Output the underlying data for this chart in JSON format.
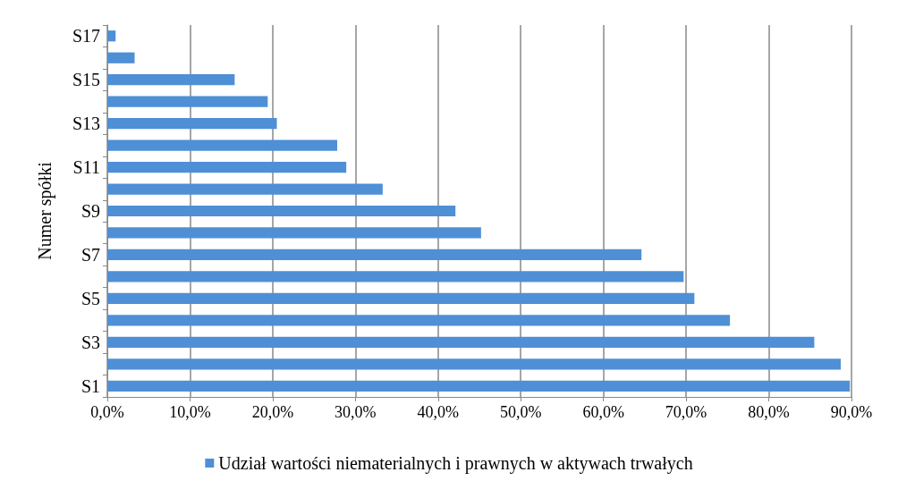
{
  "chart_data": {
    "type": "bar",
    "orientation": "horizontal",
    "ylabel": "Numer spółki",
    "categories": [
      "S17",
      null,
      "S15",
      null,
      "S13",
      null,
      "S11",
      null,
      "S9",
      null,
      "S7",
      null,
      "S5",
      null,
      "S3",
      null,
      "S1"
    ],
    "series": [
      {
        "name": "Udział wartości niematerialnych i prawnych w aktywach trwałych",
        "color": "#4f8fd6",
        "values": [
          1.0,
          3.3,
          15.4,
          19.4,
          20.5,
          27.8,
          28.9,
          33.3,
          42.1,
          45.2,
          64.6,
          69.7,
          71.0,
          75.3,
          85.5,
          88.7,
          89.8
        ]
      }
    ],
    "xlim": [
      0,
      90
    ],
    "xticks": [
      {
        "value": 0,
        "label": "0,0%"
      },
      {
        "value": 10,
        "label": "10,0%"
      },
      {
        "value": 20,
        "label": "20,0%"
      },
      {
        "value": 30,
        "label": "30,0%"
      },
      {
        "value": 40,
        "label": "40,0%"
      },
      {
        "value": 50,
        "label": "50,0%"
      },
      {
        "value": 60,
        "label": "60,0%"
      },
      {
        "value": 70,
        "label": "70,0%"
      },
      {
        "value": 80,
        "label": "80,0%"
      },
      {
        "value": 90,
        "label": "90,0%"
      }
    ],
    "grid": "x",
    "legend": "bottom"
  }
}
